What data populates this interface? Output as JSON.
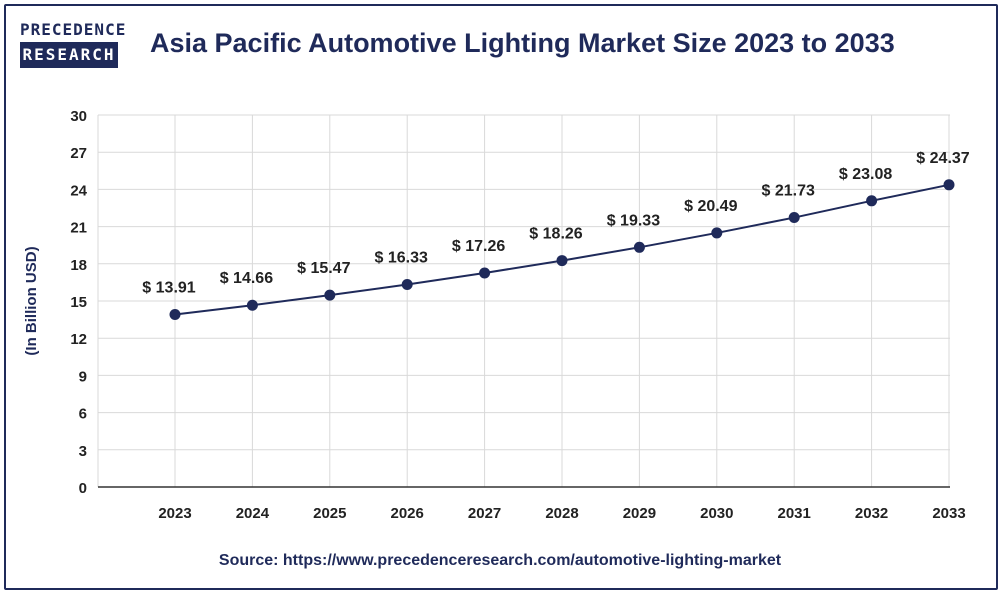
{
  "logo": {
    "line1": "PRECEDENCE",
    "line2": "RESEARCH"
  },
  "title": "Asia Pacific Automotive Lighting Market Size 2023 to 2033",
  "source": "Source: https://www.precedenceresearch.com/automotive-lighting-market",
  "colors": {
    "primary": "#1f2a5a",
    "grid": "#d9d9d9",
    "axis": "#333333"
  },
  "chart_data": {
    "type": "line",
    "title": "Asia Pacific Automotive Lighting Market Size 2023 to 2033",
    "xlabel": "",
    "ylabel": "(In Billion USD)",
    "categories": [
      "2023",
      "2024",
      "2025",
      "2026",
      "2027",
      "2028",
      "2029",
      "2030",
      "2031",
      "2032",
      "2033"
    ],
    "series": [
      {
        "values": [
          13.91,
          14.66,
          15.47,
          16.33,
          17.26,
          18.26,
          19.33,
          20.49,
          21.73,
          23.08,
          24.37
        ]
      }
    ],
    "data_labels": [
      "$ 13.91",
      "$ 14.66",
      "$ 15.47",
      "$ 16.33",
      "$ 17.26",
      "$ 18.26",
      "$ 19.33",
      "$ 20.49",
      "$ 21.73",
      "$ 23.08",
      "$ 24.37"
    ],
    "ylim": [
      0,
      30
    ],
    "yticks": [
      0,
      3,
      6,
      9,
      12,
      15,
      18,
      21,
      24,
      27,
      30
    ],
    "grid": true,
    "legend": "none"
  }
}
